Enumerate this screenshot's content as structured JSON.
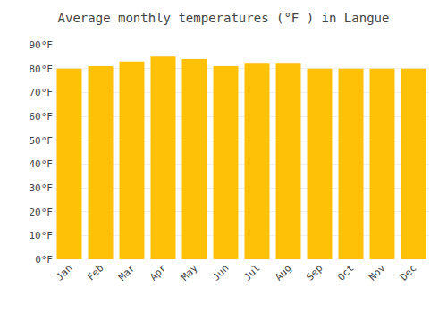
{
  "chart_data": {
    "type": "bar",
    "title": "Average monthly temperatures (°F ) in Langue",
    "categories": [
      "Jan",
      "Feb",
      "Mar",
      "Apr",
      "May",
      "Jun",
      "Jul",
      "Aug",
      "Sep",
      "Oct",
      "Nov",
      "Dec"
    ],
    "values": [
      80,
      81,
      83,
      85,
      84,
      81,
      82,
      82,
      80,
      80,
      80,
      80
    ],
    "color": "#FFC107",
    "ylim": [
      0,
      90
    ],
    "yticks": [
      {
        "value": 0,
        "label": "0°F"
      },
      {
        "value": 10,
        "label": "10°F"
      },
      {
        "value": 20,
        "label": "20°F"
      },
      {
        "value": 30,
        "label": "30°F"
      },
      {
        "value": 40,
        "label": "40°F"
      },
      {
        "value": 50,
        "label": "50°F"
      },
      {
        "value": 60,
        "label": "60°F"
      },
      {
        "value": 70,
        "label": "70°F"
      },
      {
        "value": 80,
        "label": "80°F"
      },
      {
        "value": 90,
        "label": "90°F"
      }
    ],
    "grid": true
  }
}
